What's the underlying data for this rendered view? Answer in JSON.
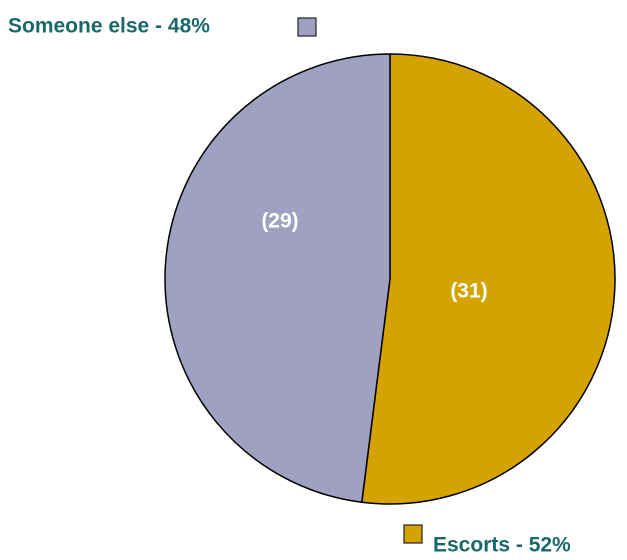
{
  "chart_data": {
    "type": "pie",
    "categories": [
      "Someone else - 48%",
      "Escorts - 52%"
    ],
    "values": [
      48,
      52
    ],
    "colors": [
      "#a0a0c0",
      "#d4a300"
    ],
    "counts": [
      29,
      31
    ],
    "count_labels": [
      "(29)",
      "(31)"
    ],
    "legend_color": "#1b6868"
  }
}
